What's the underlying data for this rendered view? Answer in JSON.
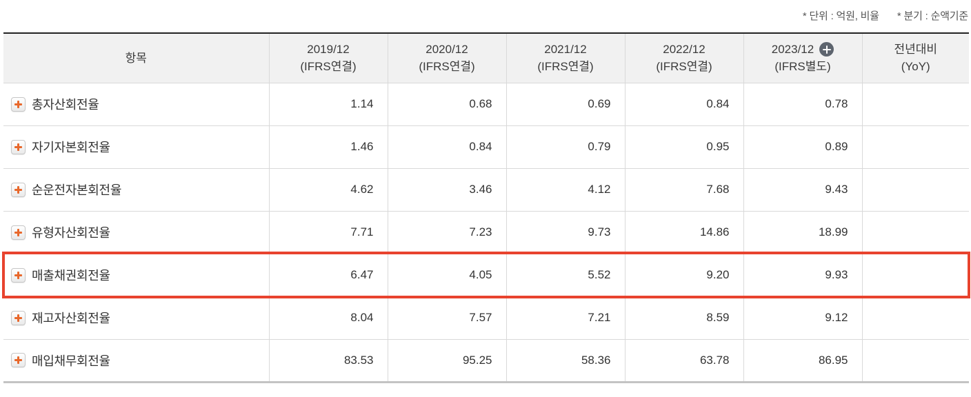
{
  "notes": {
    "unit": "* 단위 : 억원, 비율",
    "basis": "* 분기 : 순액기준"
  },
  "table": {
    "item_header": "항목",
    "columns": [
      {
        "period": "2019/12",
        "basis": "(IFRS연결)"
      },
      {
        "period": "2020/12",
        "basis": "(IFRS연결)"
      },
      {
        "period": "2021/12",
        "basis": "(IFRS연결)"
      },
      {
        "period": "2022/12",
        "basis": "(IFRS연결)"
      },
      {
        "period": "2023/12",
        "basis": "(IFRS별도)",
        "has_plus_icon": true
      },
      {
        "period": "전년대비",
        "basis": "(YoY)"
      }
    ],
    "rows": [
      {
        "label": "총자산회전율",
        "values": [
          "1.14",
          "0.68",
          "0.69",
          "0.84",
          "0.78",
          ""
        ],
        "highlighted": false
      },
      {
        "label": "자기자본회전율",
        "values": [
          "1.46",
          "0.84",
          "0.79",
          "0.95",
          "0.89",
          ""
        ],
        "highlighted": false
      },
      {
        "label": "순운전자본회전율",
        "values": [
          "4.62",
          "3.46",
          "4.12",
          "7.68",
          "9.43",
          ""
        ],
        "highlighted": false
      },
      {
        "label": "유형자산회전율",
        "values": [
          "7.71",
          "7.23",
          "9.73",
          "14.86",
          "18.99",
          ""
        ],
        "highlighted": false
      },
      {
        "label": "매출채권회전율",
        "values": [
          "6.47",
          "4.05",
          "5.52",
          "9.20",
          "9.93",
          ""
        ],
        "highlighted": true
      },
      {
        "label": "재고자산회전율",
        "values": [
          "8.04",
          "7.57",
          "7.21",
          "8.59",
          "9.12",
          ""
        ],
        "highlighted": false
      },
      {
        "label": "매입채무회전율",
        "values": [
          "83.53",
          "95.25",
          "58.36",
          "63.78",
          "86.95",
          ""
        ],
        "highlighted": false
      }
    ]
  },
  "icons": {
    "row_plus": "plus-icon",
    "header_circle_plus": "plus-circle-icon"
  },
  "colors": {
    "highlight_border": "#e8432e",
    "row_plus": "#e8682c",
    "header_plus_circle": "#5d646e",
    "header_bg": "#f1f1f1",
    "table_top_border": "#222222",
    "table_bottom_border": "#c3c3c3",
    "cell_border": "#d9d9d9",
    "text": "#333333",
    "note_text": "#555555"
  }
}
